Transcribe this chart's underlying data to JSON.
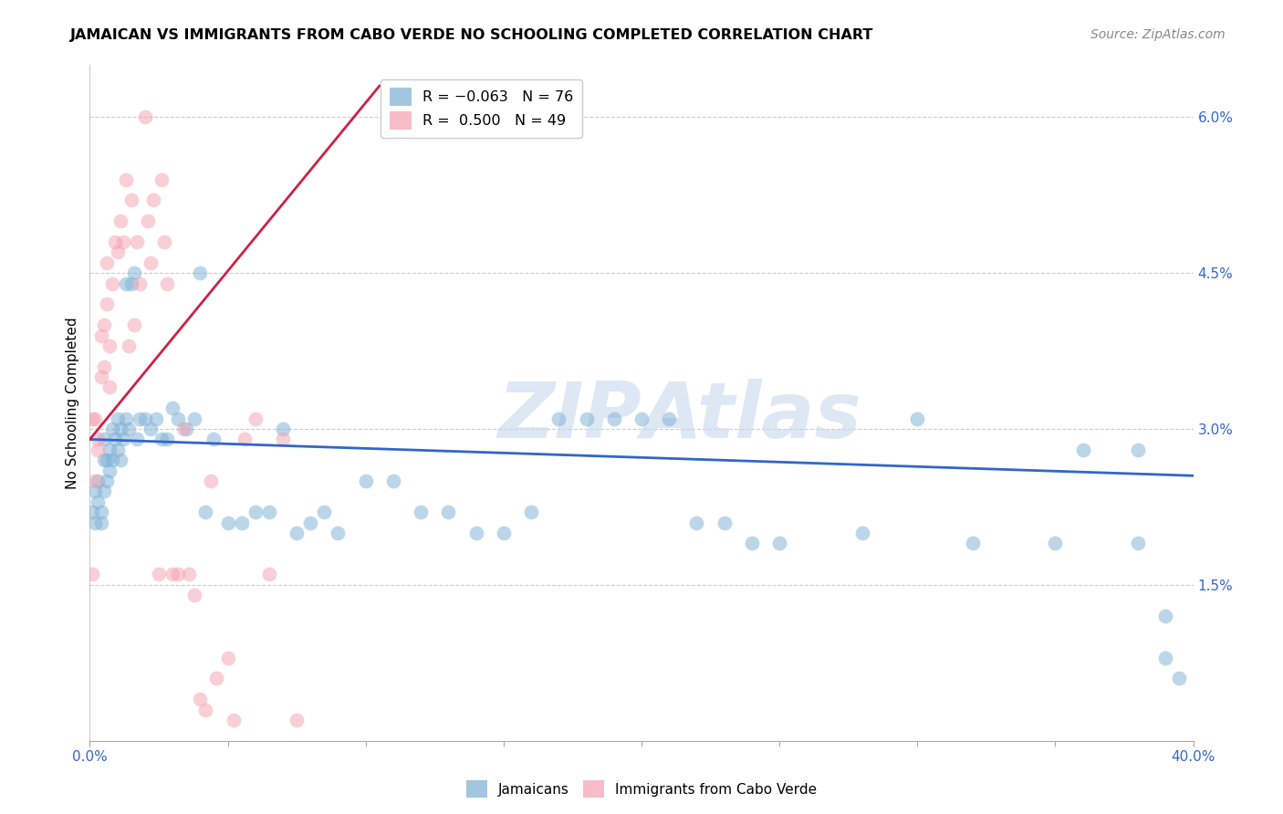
{
  "title": "JAMAICAN VS IMMIGRANTS FROM CABO VERDE NO SCHOOLING COMPLETED CORRELATION CHART",
  "source": "Source: ZipAtlas.com",
  "ylabel": "No Schooling Completed",
  "xmin": 0.0,
  "xmax": 0.4,
  "ymin": 0.0,
  "ymax": 0.065,
  "jamaicans_color": "#7bafd4",
  "caboverde_color": "#f4a0b0",
  "reg_blue": [
    0.0,
    0.029,
    0.4,
    0.0255
  ],
  "reg_pink": [
    0.0,
    0.029,
    0.105,
    0.063
  ],
  "jamaicans_x": [
    0.001,
    0.002,
    0.002,
    0.003,
    0.003,
    0.004,
    0.004,
    0.005,
    0.005,
    0.005,
    0.006,
    0.006,
    0.007,
    0.007,
    0.008,
    0.008,
    0.009,
    0.01,
    0.01,
    0.011,
    0.011,
    0.012,
    0.013,
    0.013,
    0.014,
    0.015,
    0.016,
    0.017,
    0.018,
    0.02,
    0.022,
    0.024,
    0.026,
    0.028,
    0.03,
    0.032,
    0.035,
    0.038,
    0.04,
    0.042,
    0.045,
    0.05,
    0.055,
    0.06,
    0.065,
    0.07,
    0.075,
    0.08,
    0.085,
    0.09,
    0.1,
    0.11,
    0.12,
    0.13,
    0.14,
    0.15,
    0.16,
    0.17,
    0.18,
    0.19,
    0.2,
    0.21,
    0.22,
    0.23,
    0.24,
    0.25,
    0.28,
    0.3,
    0.32,
    0.35,
    0.36,
    0.38,
    0.38,
    0.39,
    0.39,
    0.395
  ],
  "jamaicans_y": [
    0.022,
    0.024,
    0.021,
    0.023,
    0.025,
    0.022,
    0.021,
    0.029,
    0.027,
    0.024,
    0.027,
    0.025,
    0.028,
    0.026,
    0.03,
    0.027,
    0.029,
    0.031,
    0.028,
    0.03,
    0.027,
    0.029,
    0.044,
    0.031,
    0.03,
    0.044,
    0.045,
    0.029,
    0.031,
    0.031,
    0.03,
    0.031,
    0.029,
    0.029,
    0.032,
    0.031,
    0.03,
    0.031,
    0.045,
    0.022,
    0.029,
    0.021,
    0.021,
    0.022,
    0.022,
    0.03,
    0.02,
    0.021,
    0.022,
    0.02,
    0.025,
    0.025,
    0.022,
    0.022,
    0.02,
    0.02,
    0.022,
    0.031,
    0.031,
    0.031,
    0.031,
    0.031,
    0.021,
    0.021,
    0.019,
    0.019,
    0.02,
    0.031,
    0.019,
    0.019,
    0.028,
    0.019,
    0.028,
    0.012,
    0.008,
    0.006
  ],
  "caboverde_x": [
    0.001,
    0.001,
    0.002,
    0.002,
    0.003,
    0.003,
    0.004,
    0.004,
    0.005,
    0.005,
    0.006,
    0.006,
    0.007,
    0.007,
    0.008,
    0.009,
    0.01,
    0.011,
    0.012,
    0.013,
    0.014,
    0.015,
    0.016,
    0.017,
    0.018,
    0.02,
    0.021,
    0.022,
    0.023,
    0.025,
    0.026,
    0.027,
    0.028,
    0.03,
    0.032,
    0.034,
    0.036,
    0.038,
    0.04,
    0.042,
    0.044,
    0.046,
    0.05,
    0.052,
    0.056,
    0.06,
    0.065,
    0.07,
    0.075
  ],
  "caboverde_y": [
    0.031,
    0.016,
    0.031,
    0.025,
    0.029,
    0.028,
    0.039,
    0.035,
    0.04,
    0.036,
    0.046,
    0.042,
    0.038,
    0.034,
    0.044,
    0.048,
    0.047,
    0.05,
    0.048,
    0.054,
    0.038,
    0.052,
    0.04,
    0.048,
    0.044,
    0.06,
    0.05,
    0.046,
    0.052,
    0.016,
    0.054,
    0.048,
    0.044,
    0.016,
    0.016,
    0.03,
    0.016,
    0.014,
    0.004,
    0.003,
    0.025,
    0.006,
    0.008,
    0.002,
    0.029,
    0.031,
    0.016,
    0.029,
    0.002
  ]
}
